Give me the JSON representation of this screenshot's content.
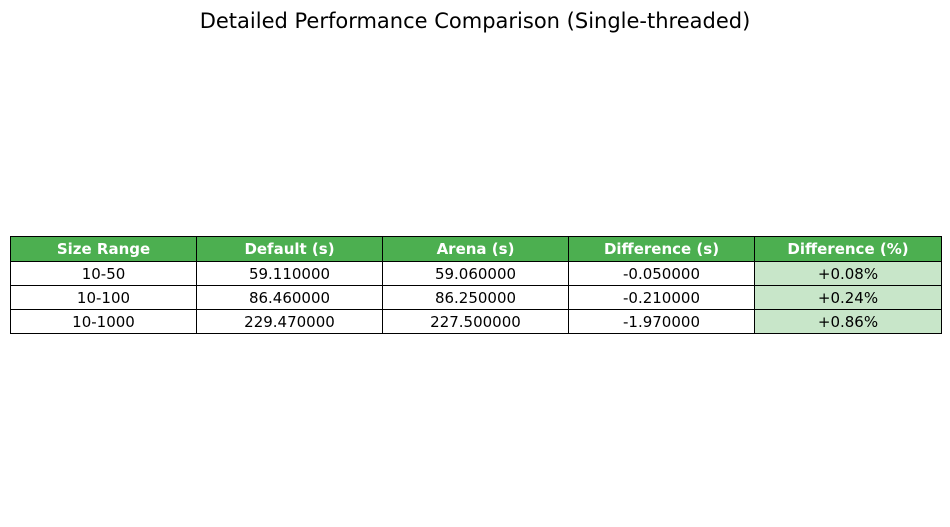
{
  "title": "Detailed Performance Comparison (Single-threaded)",
  "colors": {
    "header_bg": "#4caf50",
    "header_text": "#ffffff",
    "highlight_bg": "#c8e6c9",
    "cell_bg": "#ffffff",
    "border": "#000000"
  },
  "chart_data": {
    "type": "table",
    "title": "Detailed Performance Comparison (Single-threaded)",
    "columns": [
      "Size Range",
      "Default (s)",
      "Arena (s)",
      "Difference (s)",
      "Difference (%)"
    ],
    "rows": [
      [
        "10-50",
        "59.110000",
        "59.060000",
        "-0.050000",
        "+0.08%"
      ],
      [
        "10-100",
        "86.460000",
        "86.250000",
        "-0.210000",
        "+0.24%"
      ],
      [
        "10-1000",
        "229.470000",
        "227.500000",
        "-1.970000",
        "+0.86%"
      ]
    ],
    "highlight_column": 4
  }
}
